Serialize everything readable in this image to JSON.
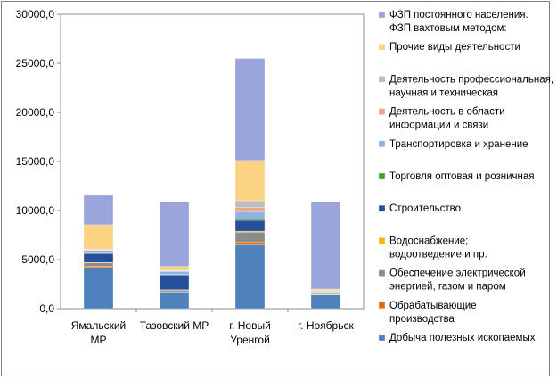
{
  "chart_data": {
    "type": "bar",
    "stacked": true,
    "grid": false,
    "legend_position": "right",
    "ylim": [
      0,
      30000
    ],
    "y_ticks": [
      "0,0",
      "5000,0",
      "10000,0",
      "15000,0",
      "20000,0",
      "25000,0",
      "30000,0"
    ],
    "categories": [
      [
        "Ямальский",
        "МР"
      ],
      [
        "Тазовский МР"
      ],
      [
        "г. Новый",
        "Уренгой"
      ],
      [
        "г. Ноябрьск"
      ]
    ],
    "series": [
      {
        "name": [
          "Добыча полезных ископаемых"
        ],
        "color": "#4f81bd",
        "values": [
          4200,
          1700,
          6500,
          1400
        ]
      },
      {
        "name": [
          "Обрабатывающие",
          "производства"
        ],
        "color": "#e36c0a",
        "values": [
          150,
          30,
          300,
          50
        ]
      },
      {
        "name": [
          "Обеспечение электрической",
          "энергией, газом и паром"
        ],
        "color": "#8c8c8c",
        "values": [
          300,
          150,
          1000,
          100
        ]
      },
      {
        "name": [
          "Водоснабжение;",
          "водоотведение и пр."
        ],
        "color": "#f0b800",
        "values": [
          50,
          50,
          100,
          30
        ]
      },
      {
        "name": [
          "Строительство"
        ],
        "color": "#254f98",
        "values": [
          900,
          1500,
          1100,
          100
        ]
      },
      {
        "name": [
          "Торговля оптовая и розничная"
        ],
        "color": "#4aa020",
        "values": [
          50,
          50,
          100,
          30
        ]
      },
      {
        "name": [
          "Транспортировка и хранение"
        ],
        "color": "#8db3e2",
        "values": [
          300,
          300,
          800,
          80
        ]
      },
      {
        "name": [
          "Деятельность в области",
          "информации и связи"
        ],
        "color": "#f2a48c",
        "values": [
          50,
          50,
          400,
          30
        ]
      },
      {
        "name": [
          "Деятельность профессиональная,",
          "научная и техническая"
        ],
        "color": "#bdbdbd",
        "values": [
          50,
          70,
          700,
          30
        ]
      },
      {
        "name": [
          "Прочие виды деятельности"
        ],
        "color": "#fcd383",
        "values": [
          2500,
          400,
          4100,
          150
        ]
      },
      {
        "name": [
          "ФЗП постоянного населения.",
          "ФЗП вахтовым методом:"
        ],
        "color": "#9aa5dc",
        "values": [
          3000,
          6600,
          10400,
          8900
        ]
      }
    ]
  }
}
